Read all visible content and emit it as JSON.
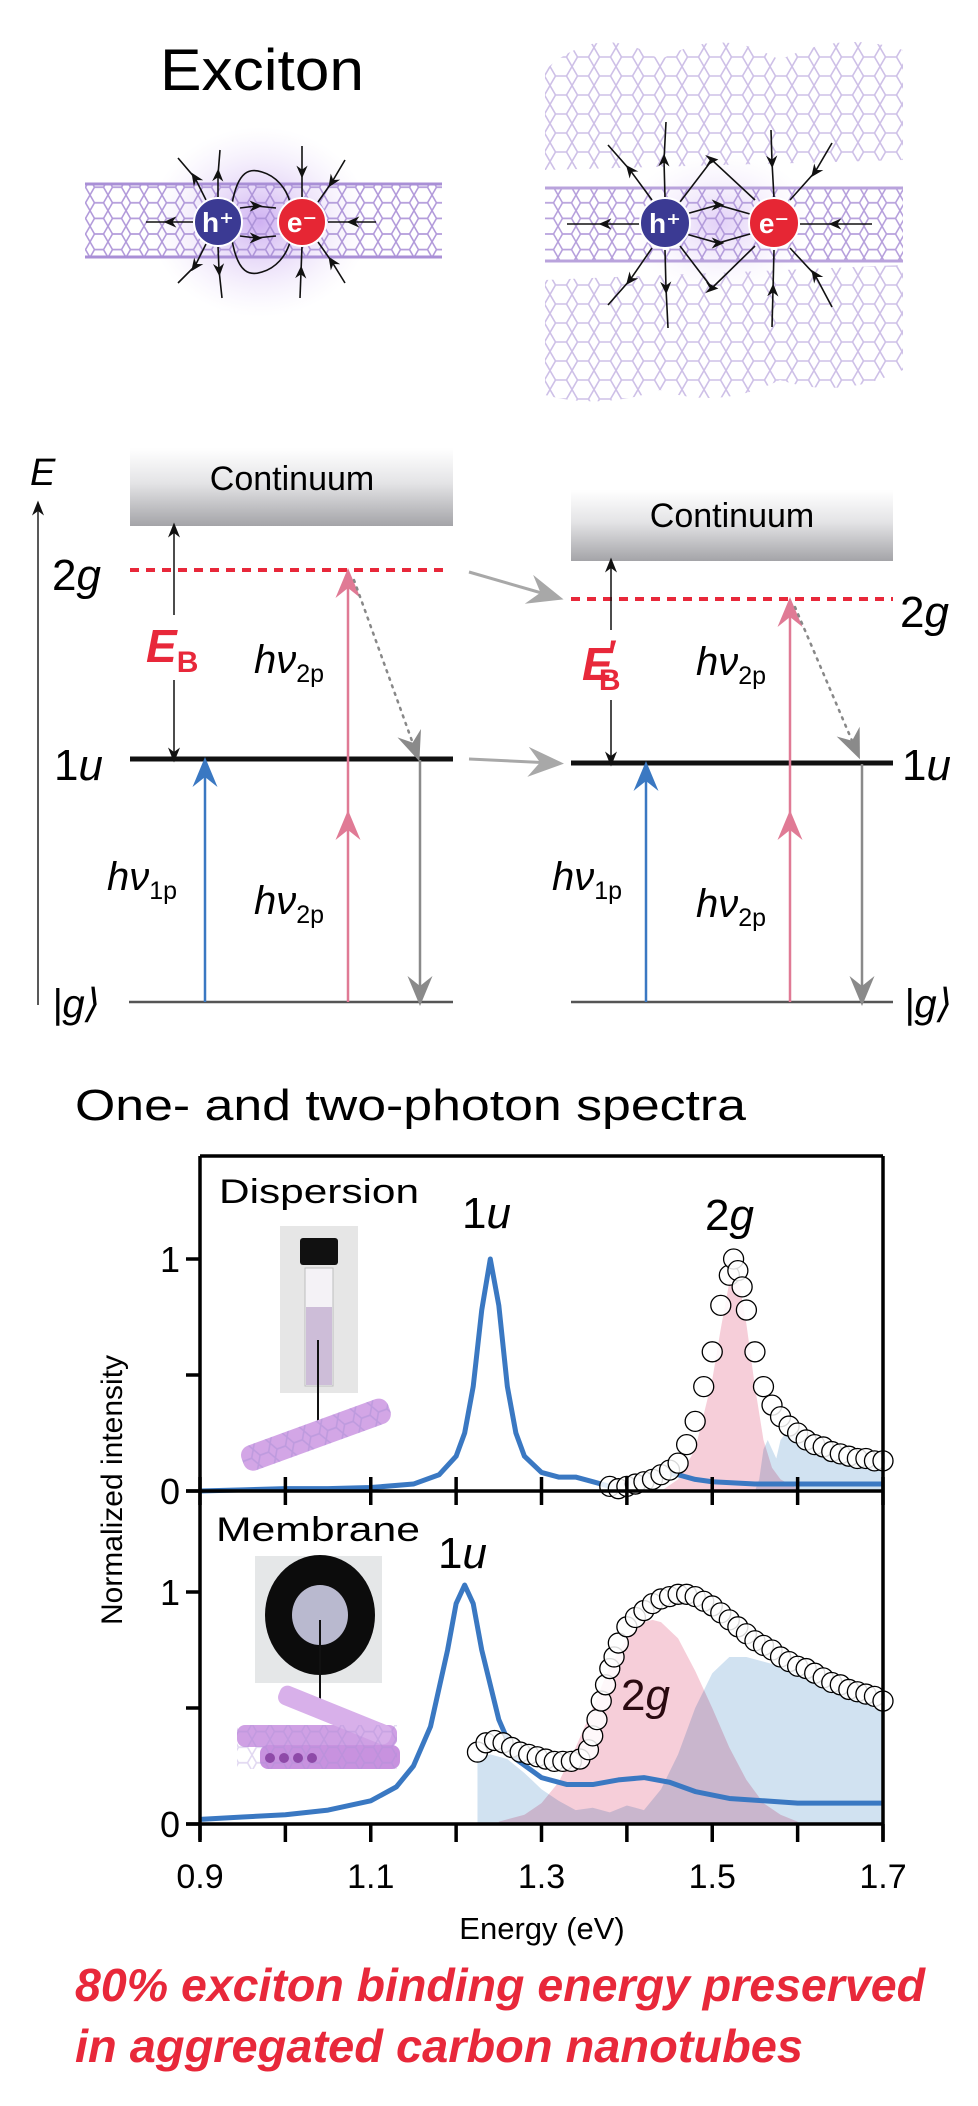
{
  "header": {
    "title": "Exciton"
  },
  "particles": {
    "hole": "h⁺",
    "electron": "e⁻",
    "hole_color": "#3b3a93",
    "electron_color": "#e62634"
  },
  "energy_diagram": {
    "axis_label": "E",
    "continuum_label": "Continuum",
    "level_2g": {
      "num": "2",
      "sym": "g"
    },
    "level_1u": {
      "num": "1",
      "sym": "u"
    },
    "ground": "|g⟩",
    "binding_energy": {
      "sym": "E",
      "sub": "B",
      "prime": "′"
    },
    "photon": "hν",
    "sub_1p": "1p",
    "sub_2p": "2p",
    "colors": {
      "one_photon": "#3a78c2",
      "two_photon": "#e07a95",
      "relax": "#8a8a8a",
      "level_2g": "#e8283a",
      "binding": "#e8283a"
    }
  },
  "spectra": {
    "title": "One- and two-photon spectra",
    "panels": [
      {
        "label": "Dispersion",
        "peak_1u": {
          "num": "1",
          "sym": "u"
        },
        "peak_2g": {
          "num": "2",
          "sym": "g"
        }
      },
      {
        "label": "Membrane",
        "peak_1u": {
          "num": "1",
          "sym": "u"
        },
        "peak_2g": {
          "num": "2",
          "sym": "g"
        }
      }
    ]
  },
  "chart_data": {
    "type": "line",
    "title": "One- and two-photon spectra",
    "xlabel": "Energy (eV)",
    "ylabel": "Normalized intensity",
    "xlim": [
      0.9,
      1.7
    ],
    "ylim": [
      0,
      1.44
    ],
    "xticks": [
      "0.9",
      "1.1",
      "1.3",
      "1.5",
      "1.7"
    ],
    "yticks": [
      "0",
      "1"
    ],
    "grid": false,
    "colors": {
      "one_photon_line": "#3a78c2",
      "two_photon_fill": "#f2b3c4",
      "emission_fill": "#b9d2ea",
      "markers": "#000000"
    },
    "panels": [
      {
        "name": "Dispersion",
        "one_photon": {
          "x": [
            0.9,
            0.95,
            1.0,
            1.05,
            1.1,
            1.15,
            1.18,
            1.2,
            1.21,
            1.22,
            1.23,
            1.24,
            1.25,
            1.26,
            1.27,
            1.28,
            1.3,
            1.32,
            1.34,
            1.36,
            1.38,
            1.4,
            1.42,
            1.44,
            1.46,
            1.48,
            1.5,
            1.55,
            1.6,
            1.65,
            1.7
          ],
          "y": [
            0.0,
            0.005,
            0.01,
            0.01,
            0.015,
            0.03,
            0.07,
            0.15,
            0.25,
            0.45,
            0.78,
            1.0,
            0.8,
            0.45,
            0.25,
            0.15,
            0.08,
            0.06,
            0.06,
            0.04,
            0.02,
            0.03,
            0.06,
            0.08,
            0.07,
            0.05,
            0.04,
            0.03,
            0.03,
            0.03,
            0.03
          ]
        },
        "two_photon_excitation": {
          "x": [
            1.38,
            1.39,
            1.4,
            1.41,
            1.42,
            1.43,
            1.44,
            1.45,
            1.46,
            1.47,
            1.48,
            1.49,
            1.5,
            1.51,
            1.52,
            1.525,
            1.53,
            1.535,
            1.54,
            1.55,
            1.56,
            1.57,
            1.58,
            1.59,
            1.6,
            1.61,
            1.62,
            1.63,
            1.64,
            1.65,
            1.66,
            1.67,
            1.68,
            1.69,
            1.7
          ],
          "y": [
            0.02,
            0.01,
            0.02,
            0.03,
            0.04,
            0.05,
            0.07,
            0.09,
            0.12,
            0.2,
            0.3,
            0.45,
            0.6,
            0.8,
            0.93,
            1.0,
            0.95,
            0.88,
            0.78,
            0.6,
            0.45,
            0.37,
            0.32,
            0.28,
            0.25,
            0.22,
            0.2,
            0.19,
            0.17,
            0.16,
            0.15,
            0.14,
            0.14,
            0.13,
            0.13
          ]
        },
        "two_photon_fill": {
          "x": [
            1.44,
            1.46,
            1.48,
            1.5,
            1.51,
            1.52,
            1.525,
            1.53,
            1.54,
            1.55,
            1.56,
            1.57,
            1.58,
            1.6
          ],
          "y": [
            0,
            0.05,
            0.18,
            0.48,
            0.7,
            0.9,
            0.98,
            0.93,
            0.72,
            0.45,
            0.22,
            0.1,
            0.05,
            0.01
          ]
        },
        "emission_fill": {
          "x": [
            1.55,
            1.555,
            1.56,
            1.565,
            1.57,
            1.575,
            1.58,
            1.59,
            1.6,
            1.62,
            1.65,
            1.68,
            1.7
          ],
          "y": [
            0,
            0.05,
            0.18,
            0.22,
            0.18,
            0.14,
            0.22,
            0.27,
            0.26,
            0.22,
            0.19,
            0.16,
            0.15
          ]
        }
      },
      {
        "name": "Membrane",
        "one_photon": {
          "x": [
            0.9,
            0.95,
            1.0,
            1.05,
            1.1,
            1.13,
            1.15,
            1.17,
            1.19,
            1.2,
            1.21,
            1.22,
            1.23,
            1.25,
            1.27,
            1.3,
            1.33,
            1.36,
            1.39,
            1.42,
            1.45,
            1.48,
            1.52,
            1.56,
            1.6,
            1.65,
            1.7
          ],
          "y": [
            0.02,
            0.03,
            0.04,
            0.06,
            0.1,
            0.16,
            0.25,
            0.42,
            0.75,
            0.95,
            1.03,
            0.95,
            0.75,
            0.45,
            0.28,
            0.2,
            0.17,
            0.17,
            0.19,
            0.2,
            0.18,
            0.14,
            0.11,
            0.1,
            0.09,
            0.09,
            0.09
          ]
        },
        "two_photon_excitation": {
          "x": [
            1.225,
            1.235,
            1.245,
            1.255,
            1.265,
            1.275,
            1.285,
            1.295,
            1.305,
            1.315,
            1.325,
            1.335,
            1.345,
            1.355,
            1.36,
            1.365,
            1.37,
            1.375,
            1.38,
            1.385,
            1.39,
            1.4,
            1.41,
            1.42,
            1.43,
            1.44,
            1.45,
            1.46,
            1.47,
            1.48,
            1.49,
            1.5,
            1.51,
            1.52,
            1.53,
            1.54,
            1.55,
            1.56,
            1.57,
            1.58,
            1.59,
            1.6,
            1.61,
            1.62,
            1.63,
            1.64,
            1.65,
            1.66,
            1.67,
            1.68,
            1.69,
            1.7
          ],
          "y": [
            0.31,
            0.35,
            0.36,
            0.35,
            0.33,
            0.31,
            0.3,
            0.29,
            0.28,
            0.27,
            0.27,
            0.27,
            0.28,
            0.32,
            0.38,
            0.45,
            0.53,
            0.6,
            0.67,
            0.72,
            0.78,
            0.85,
            0.89,
            0.92,
            0.95,
            0.97,
            0.98,
            0.99,
            0.99,
            0.98,
            0.96,
            0.94,
            0.91,
            0.88,
            0.85,
            0.82,
            0.79,
            0.77,
            0.75,
            0.72,
            0.7,
            0.68,
            0.67,
            0.65,
            0.63,
            0.61,
            0.6,
            0.58,
            0.57,
            0.56,
            0.55,
            0.53
          ]
        },
        "two_photon_fill": {
          "x": [
            1.25,
            1.28,
            1.3,
            1.32,
            1.34,
            1.36,
            1.38,
            1.4,
            1.42,
            1.43,
            1.44,
            1.46,
            1.48,
            1.5,
            1.52,
            1.54,
            1.56,
            1.58,
            1.6
          ],
          "y": [
            0.01,
            0.04,
            0.09,
            0.18,
            0.33,
            0.5,
            0.68,
            0.8,
            0.87,
            0.88,
            0.87,
            0.8,
            0.66,
            0.5,
            0.33,
            0.19,
            0.09,
            0.04,
            0.01
          ]
        },
        "emission_fill": {
          "x": [
            1.225,
            1.24,
            1.26,
            1.28,
            1.3,
            1.32,
            1.34,
            1.36,
            1.38,
            1.4,
            1.42,
            1.44,
            1.46,
            1.48,
            1.5,
            1.52,
            1.54,
            1.56,
            1.6,
            1.64,
            1.68,
            1.7
          ],
          "y": [
            0.28,
            0.3,
            0.28,
            0.22,
            0.15,
            0.1,
            0.06,
            0.07,
            0.05,
            0.08,
            0.06,
            0.15,
            0.3,
            0.5,
            0.65,
            0.72,
            0.72,
            0.7,
            0.66,
            0.6,
            0.52,
            0.48
          ]
        }
      }
    ]
  },
  "caption": {
    "line1": "80% exciton binding energy preserved",
    "line2": "in aggregated carbon nanotubes",
    "color": "#e8283a"
  }
}
